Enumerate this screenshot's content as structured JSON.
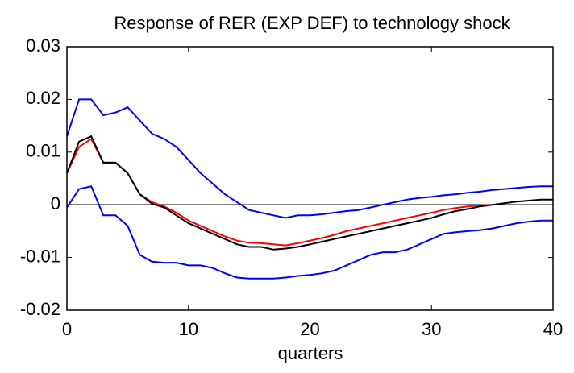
{
  "chart_data": {
    "type": "line",
    "title": "Response of RER (EXP DEF) to technology shock",
    "x_label": "quarters",
    "x": [
      0,
      1,
      2,
      3,
      4,
      5,
      6,
      7,
      8,
      9,
      10,
      11,
      12,
      13,
      14,
      15,
      16,
      17,
      18,
      19,
      20,
      21,
      22,
      23,
      24,
      25,
      26,
      27,
      28,
      29,
      30,
      31,
      32,
      33,
      34,
      35,
      36,
      37,
      38,
      39,
      40
    ],
    "series": [
      {
        "color": "#0000ff",
        "values": [
          0.013,
          0.02,
          0.02,
          0.017,
          0.0175,
          0.0185,
          0.016,
          0.0135,
          0.0125,
          0.011,
          0.0085,
          0.006,
          0.004,
          0.002,
          0.0005,
          -0.001,
          -0.0015,
          -0.002,
          -0.0025,
          -0.002,
          -0.002,
          -0.0018,
          -0.0015,
          -0.0012,
          -0.001,
          -0.0005,
          0.0,
          0.0005,
          0.001,
          0.0013,
          0.0015,
          0.0018,
          0.002,
          0.0023,
          0.0025,
          0.0028,
          0.003,
          0.0032,
          0.0034,
          0.0035,
          0.0035
        ]
      },
      {
        "color": "#0000ff",
        "values": [
          -0.0005,
          0.003,
          0.0035,
          -0.002,
          -0.002,
          -0.004,
          -0.0095,
          -0.0108,
          -0.011,
          -0.011,
          -0.0115,
          -0.0115,
          -0.012,
          -0.013,
          -0.0138,
          -0.014,
          -0.014,
          -0.014,
          -0.0138,
          -0.0135,
          -0.0133,
          -0.013,
          -0.0125,
          -0.0115,
          -0.0105,
          -0.0095,
          -0.009,
          -0.009,
          -0.0085,
          -0.0075,
          -0.0065,
          -0.0055,
          -0.0052,
          -0.005,
          -0.0048,
          -0.0045,
          -0.004,
          -0.0035,
          -0.0032,
          -0.003,
          -0.003
        ]
      },
      {
        "color": "#ff0000",
        "values": [
          0.006,
          0.011,
          0.0125,
          0.008,
          0.008,
          0.006,
          0.002,
          0.0005,
          -0.0003,
          -0.0015,
          -0.003,
          -0.004,
          -0.005,
          -0.006,
          -0.0068,
          -0.0072,
          -0.0073,
          -0.0075,
          -0.0077,
          -0.0073,
          -0.0068,
          -0.0063,
          -0.0057,
          -0.005,
          -0.0045,
          -0.004,
          -0.0035,
          -0.003,
          -0.0025,
          -0.002,
          -0.0015,
          -0.001,
          -0.0006,
          -0.0003,
          -0.0001,
          0.0,
          null,
          null,
          null,
          null,
          null
        ]
      },
      {
        "color": "#000000",
        "values": [
          0.006,
          0.012,
          0.013,
          0.008,
          0.008,
          0.006,
          0.002,
          0.0002,
          -0.0005,
          -0.002,
          -0.0035,
          -0.0045,
          -0.0055,
          -0.0065,
          -0.0075,
          -0.008,
          -0.008,
          -0.0085,
          -0.0083,
          -0.008,
          -0.0075,
          -0.007,
          -0.0065,
          -0.006,
          -0.0055,
          -0.005,
          -0.0045,
          -0.004,
          -0.0035,
          -0.003,
          -0.0025,
          -0.0018,
          -0.0012,
          -0.0008,
          -0.0003,
          0.0,
          0.0003,
          0.0006,
          0.0008,
          0.001,
          0.001
        ]
      }
    ],
    "reference_line": 0,
    "xlim": [
      0,
      40
    ],
    "xticks": [
      0,
      10,
      20,
      30,
      40
    ],
    "ylim": [
      -0.02,
      0.03
    ],
    "yticks": [
      -0.02,
      -0.01,
      0,
      0.01,
      0.02,
      0.03
    ],
    "grid": false
  }
}
